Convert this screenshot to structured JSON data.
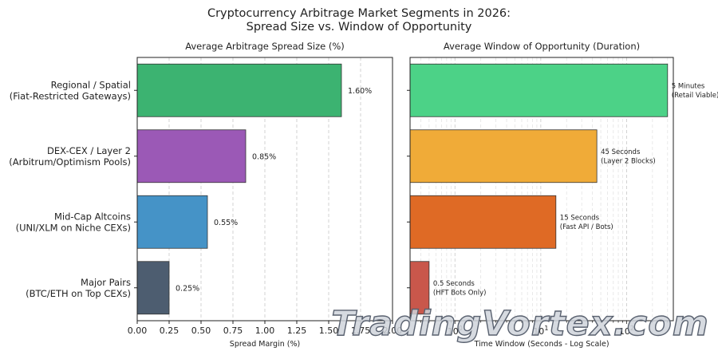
{
  "title_line1": "Cryptocurrency Arbitrage Market Segments in 2026:",
  "title_line2": "Spread Size vs. Window of Opportunity",
  "watermark": "TradingVortex.com",
  "categories": [
    {
      "line1": "Regional / Spatial",
      "line2": "(Fiat-Restricted Gateways)"
    },
    {
      "line1": "DEX-CEX / Layer 2",
      "line2": "(Arbitrum/Optimism Pools)"
    },
    {
      "line1": "Mid-Cap Altcoins",
      "line2": "(UNI/XLM on Niche CEXs)"
    },
    {
      "line1": "Major Pairs",
      "line2": "(BTC/ETH on Top CEXs)"
    }
  ],
  "chart_data": [
    {
      "type": "bar",
      "orientation": "horizontal",
      "title": "Average Arbitrage Spread Size (%)",
      "xlabel": "Spread Margin (%)",
      "xlim": [
        0,
        2.0
      ],
      "xticks": [
        "0.00",
        "0.25",
        "0.50",
        "0.75",
        "1.00",
        "1.25",
        "1.50",
        "1.75",
        "2.00"
      ],
      "grid": "vertical dashed",
      "categories": [
        "Regional / Spatial (Fiat-Restricted Gateways)",
        "DEX-CEX / Layer 2 (Arbitrum/Optimism Pools)",
        "Mid-Cap Altcoins (UNI/XLM on Niche CEXs)",
        "Major Pairs (BTC/ETH on Top CEXs)"
      ],
      "values": [
        1.6,
        0.85,
        0.55,
        0.25
      ],
      "labels": [
        "1.60%",
        "0.85%",
        "0.55%",
        "0.25%"
      ],
      "colors": [
        "#3cb371",
        "#9b59b6",
        "#4593c7",
        "#4d5d70"
      ]
    },
    {
      "type": "bar",
      "orientation": "horizontal",
      "title": "Average Window of Opportunity (Duration)",
      "xlabel": "Time Window (Seconds - Log Scale)",
      "xscale": "log",
      "xlim": [
        0.3,
        350
      ],
      "xticks": [
        {
          "base": "10",
          "exp": "0",
          "value": 1
        },
        {
          "base": "10",
          "exp": "1",
          "value": 10
        },
        {
          "base": "10",
          "exp": "2",
          "value": 100
        }
      ],
      "grid": "vertical dashed (major and minor)",
      "categories": [
        "Regional / Spatial (Fiat-Restricted Gateways)",
        "DEX-CEX / Layer 2 (Arbitrum/Optimism Pools)",
        "Mid-Cap Altcoins (UNI/XLM on Niche CEXs)",
        "Major Pairs (BTC/ETH on Top CEXs)"
      ],
      "values": [
        300,
        45,
        15,
        0.5
      ],
      "labels": [
        {
          "line1": "5 Minutes",
          "line2": "(Retail Viable)"
        },
        {
          "line1": "45 Seconds",
          "line2": "(Layer 2 Blocks)"
        },
        {
          "line1": "15 Seconds",
          "line2": "(Fast API / Bots)"
        },
        {
          "line1": "0.5 Seconds",
          "line2": "(HFT Bots Only)"
        }
      ],
      "colors": [
        "#4cd287",
        "#f0ab38",
        "#df6a25",
        "#c9574b"
      ]
    }
  ]
}
